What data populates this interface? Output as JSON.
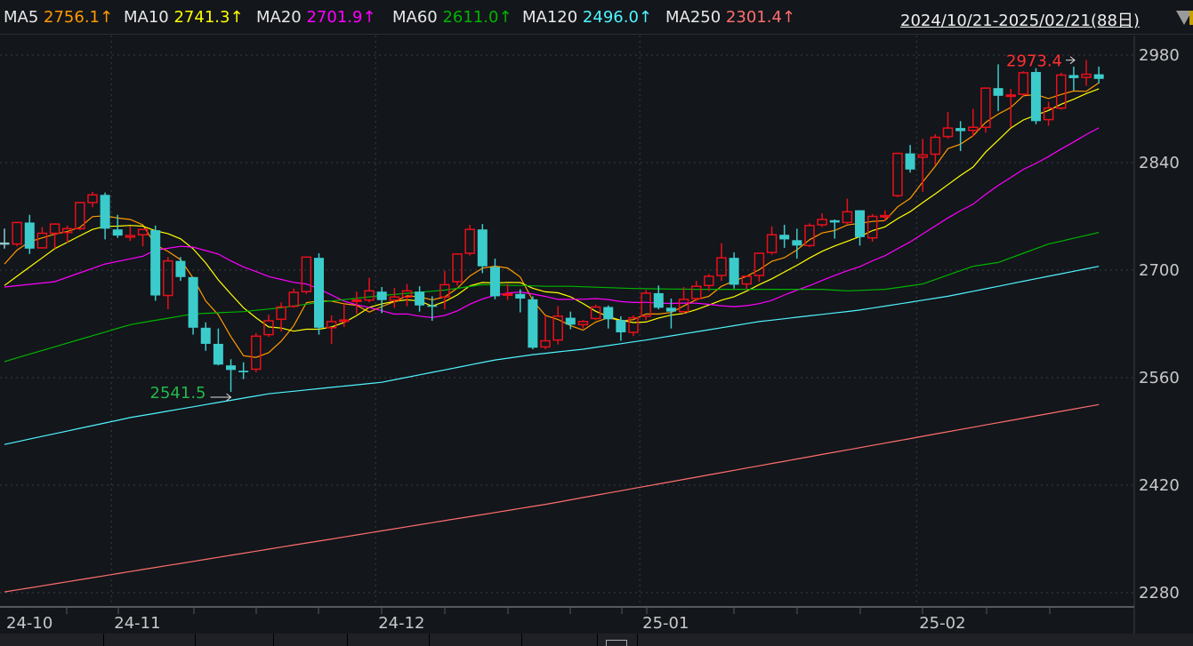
{
  "header": {
    "ma_legend": [
      {
        "name": "MA5",
        "value": "2756.1↑",
        "color": "#ff9a00"
      },
      {
        "name": "MA10",
        "value": "2741.3↑",
        "color": "#ffff00"
      },
      {
        "name": "MA20",
        "value": "2701.9↑",
        "color": "#ff00ff"
      },
      {
        "name": "MA60",
        "value": "2611.0↑",
        "color": "#00b400"
      },
      {
        "name": "MA120",
        "value": "2496.0↑",
        "color": "#4ff5ff"
      },
      {
        "name": "MA250",
        "value": "2301.4↑",
        "color": "#ff6e6e"
      }
    ],
    "date_range": "2024/10/21-2025/02/21(88日)",
    "dropdown_icon": "triangle-down-icon"
  },
  "chart_data": {
    "type": "candlestick",
    "title": "",
    "ylim": [
      2280,
      2980
    ],
    "yticks": [
      "2980",
      "2840",
      "2700",
      "2560",
      "2420",
      "2280"
    ],
    "ytick_values": [
      2980,
      2840,
      2700,
      2560,
      2420,
      2280
    ],
    "grid": true,
    "x_month_labels": [
      {
        "label": "24-10",
        "index": 0
      },
      {
        "label": "24-11",
        "index": 9
      },
      {
        "label": "24-12",
        "index": 30
      },
      {
        "label": "25-01",
        "index": 51
      },
      {
        "label": "25-02",
        "index": 73
      }
    ],
    "colors": {
      "up": "#e8101a",
      "down": "#3ccbcb",
      "background": "#13161b",
      "grid": "#3a3d44"
    },
    "ohlc": [
      [
        2736,
        2754,
        2728,
        2736
      ],
      [
        2734,
        2763,
        2731,
        2762
      ],
      [
        2762,
        2772,
        2721,
        2728
      ],
      [
        2729,
        2756,
        2728,
        2748
      ],
      [
        2748,
        2761,
        2728,
        2760
      ],
      [
        2749,
        2758,
        2736,
        2754
      ],
      [
        2754,
        2788,
        2752,
        2788
      ],
      [
        2788,
        2802,
        2782,
        2798
      ],
      [
        2798,
        2801,
        2740,
        2754
      ],
      [
        2753,
        2772,
        2742,
        2745
      ],
      [
        2743,
        2757,
        2738,
        2745
      ],
      [
        2746,
        2753,
        2731,
        2753
      ],
      [
        2752,
        2758,
        2660,
        2667
      ],
      [
        2667,
        2717,
        2649,
        2712
      ],
      [
        2712,
        2717,
        2686,
        2691
      ],
      [
        2691,
        2691,
        2616,
        2625
      ],
      [
        2625,
        2632,
        2595,
        2604
      ],
      [
        2604,
        2624,
        2576,
        2577
      ],
      [
        2576,
        2584,
        2541.5,
        2570
      ],
      [
        2569,
        2580,
        2558,
        2567
      ],
      [
        2571,
        2618,
        2567,
        2614
      ],
      [
        2616,
        2642,
        2613,
        2634
      ],
      [
        2636,
        2658,
        2620,
        2652
      ],
      [
        2653,
        2676,
        2651,
        2671
      ],
      [
        2672,
        2717,
        2669,
        2717
      ],
      [
        2716,
        2722,
        2616,
        2625
      ],
      [
        2625,
        2641,
        2604,
        2633
      ],
      [
        2634,
        2656,
        2626,
        2635
      ],
      [
        2660,
        2672,
        2643,
        2661
      ],
      [
        2661,
        2690,
        2658,
        2673
      ],
      [
        2672,
        2678,
        2644,
        2661
      ],
      [
        2661,
        2677,
        2651,
        2665
      ],
      [
        2665,
        2682,
        2653,
        2673
      ],
      [
        2672,
        2679,
        2646,
        2654
      ],
      [
        2654,
        2666,
        2634,
        2653
      ],
      [
        2665,
        2699,
        2649,
        2681
      ],
      [
        2685,
        2721,
        2680,
        2721
      ],
      [
        2722,
        2759,
        2719,
        2753
      ],
      [
        2753,
        2760,
        2696,
        2705
      ],
      [
        2704,
        2715,
        2662,
        2666
      ],
      [
        2668,
        2682,
        2661,
        2669
      ],
      [
        2669,
        2675,
        2645,
        2663
      ],
      [
        2662,
        2666,
        2597,
        2599
      ],
      [
        2600,
        2641,
        2597,
        2608
      ],
      [
        2609,
        2653,
        2603,
        2640
      ],
      [
        2638,
        2646,
        2623,
        2629
      ],
      [
        2629,
        2635,
        2624,
        2633
      ],
      [
        2637,
        2655,
        2635,
        2652
      ],
      [
        2652,
        2654,
        2624,
        2636
      ],
      [
        2635,
        2640,
        2608,
        2619
      ],
      [
        2619,
        2641,
        2614,
        2638
      ],
      [
        2640,
        2674,
        2635,
        2670
      ],
      [
        2670,
        2680,
        2649,
        2651
      ],
      [
        2651,
        2663,
        2624,
        2646
      ],
      [
        2646,
        2678,
        2643,
        2662
      ],
      [
        2663,
        2686,
        2660,
        2679
      ],
      [
        2680,
        2695,
        2673,
        2692
      ],
      [
        2693,
        2735,
        2686,
        2716
      ],
      [
        2716,
        2723,
        2676,
        2681
      ],
      [
        2682,
        2692,
        2675,
        2692
      ],
      [
        2693,
        2722,
        2685,
        2722
      ],
      [
        2723,
        2757,
        2720,
        2746
      ],
      [
        2746,
        2759,
        2729,
        2740
      ],
      [
        2739,
        2754,
        2715,
        2732
      ],
      [
        2732,
        2761,
        2730,
        2758
      ],
      [
        2759,
        2774,
        2756,
        2766
      ],
      [
        2765,
        2766,
        2741,
        2762
      ],
      [
        2762,
        2793,
        2760,
        2776
      ],
      [
        2778,
        2778,
        2732,
        2743
      ],
      [
        2742,
        2773,
        2737,
        2770
      ],
      [
        2770,
        2778,
        2764,
        2771
      ],
      [
        2797,
        2853,
        2795,
        2852
      ],
      [
        2852,
        2863,
        2827,
        2831
      ],
      [
        2847,
        2871,
        2802,
        2850
      ],
      [
        2851,
        2877,
        2837,
        2873
      ],
      [
        2874,
        2906,
        2871,
        2885
      ],
      [
        2885,
        2894,
        2855,
        2881
      ],
      [
        2882,
        2910,
        2874,
        2886
      ],
      [
        2886,
        2938,
        2879,
        2937
      ],
      [
        2937,
        2968,
        2907,
        2927
      ],
      [
        2927,
        2936,
        2886,
        2928
      ],
      [
        2929,
        2959,
        2927,
        2957
      ],
      [
        2958,
        2963,
        2890,
        2894
      ],
      [
        2896,
        2919,
        2888,
        2911
      ],
      [
        2911,
        2957,
        2909,
        2954
      ],
      [
        2954,
        2965,
        2934,
        2950
      ],
      [
        2951,
        2973.4,
        2940,
        2955
      ],
      [
        2955,
        2965,
        2943,
        2949
      ]
    ],
    "ma_series": [
      {
        "name": "MA5",
        "period": 5,
        "color": "#ff9a00",
        "early_knots": [
          [
            0,
            2708
          ],
          [
            1,
            2726
          ],
          [
            2,
            2737
          ],
          [
            3,
            2742
          ]
        ]
      },
      {
        "name": "MA10",
        "period": 10,
        "color": "#ffff00",
        "early_knots": [
          [
            0,
            2680
          ],
          [
            4,
            2728
          ],
          [
            7,
            2753
          ],
          [
            8,
            2757
          ]
        ]
      },
      {
        "name": "MA20",
        "period": 20,
        "color": "#ff00ff",
        "early_knots": [
          [
            0,
            2678
          ],
          [
            4,
            2685
          ],
          [
            8,
            2708
          ],
          [
            11,
            2718
          ],
          [
            12,
            2726
          ],
          [
            14,
            2731
          ],
          [
            15,
            2730
          ],
          [
            17,
            2721
          ],
          [
            18,
            2712
          ]
        ]
      },
      {
        "name": "MA60",
        "period": 60,
        "color": "#00b400",
        "knots": [
          [
            0,
            2581
          ],
          [
            10,
            2629
          ],
          [
            15,
            2643
          ],
          [
            19,
            2646
          ],
          [
            22,
            2651
          ],
          [
            25,
            2658
          ],
          [
            30,
            2667
          ],
          [
            35,
            2674
          ],
          [
            38,
            2681
          ],
          [
            41,
            2680
          ],
          [
            43,
            2679
          ],
          [
            45,
            2679
          ],
          [
            50,
            2676
          ],
          [
            55,
            2675
          ],
          [
            60,
            2675
          ],
          [
            65,
            2675
          ],
          [
            67,
            2673
          ],
          [
            70,
            2675
          ],
          [
            73,
            2682
          ],
          [
            77,
            2705
          ],
          [
            79,
            2710
          ],
          [
            83,
            2734
          ],
          [
            87,
            2749
          ]
        ]
      },
      {
        "name": "MA120",
        "period": 120,
        "color": "#4ff5ff",
        "knots": [
          [
            0,
            2473
          ],
          [
            10,
            2508
          ],
          [
            21,
            2539
          ],
          [
            30,
            2554
          ],
          [
            39,
            2583
          ],
          [
            42,
            2590
          ],
          [
            46,
            2597
          ],
          [
            51,
            2609
          ],
          [
            60,
            2633
          ],
          [
            68,
            2648
          ],
          [
            75,
            2666
          ],
          [
            87,
            2705
          ]
        ]
      },
      {
        "name": "MA250",
        "period": 250,
        "color": "#ff6e6e",
        "knots": [
          [
            0,
            2281
          ],
          [
            43,
            2395
          ],
          [
            87,
            2525
          ]
        ]
      }
    ],
    "annotations": [
      {
        "type": "high",
        "label": "2973.4",
        "index": 86,
        "value": 2973.4,
        "color": "#ff3030"
      },
      {
        "type": "low",
        "label": "2541.5",
        "index": 18,
        "value": 2541.5,
        "color": "#22b84a"
      }
    ]
  }
}
